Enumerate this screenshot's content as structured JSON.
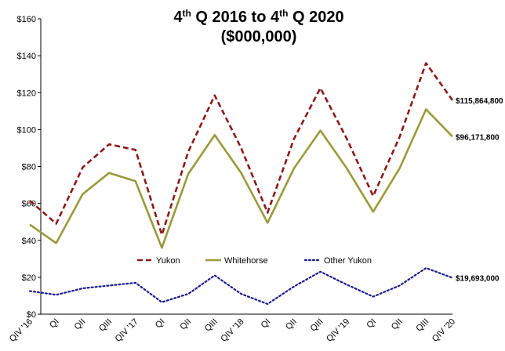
{
  "chart_data": {
    "type": "line",
    "title_parts": [
      {
        "text": "4"
      },
      {
        "text": "th",
        "sup": true
      },
      {
        "text": " Q 2016 to 4"
      },
      {
        "text": "th",
        "sup": true
      },
      {
        "text": " Q 2020"
      }
    ],
    "title_line2": "($000,000)",
    "categories": [
      "QIV '16",
      "QI",
      "QII",
      "QIII",
      "QIV '17",
      "QI",
      "QII",
      "QIII",
      "QIV '18",
      "QI",
      "QII",
      "QIII",
      "QIV '19",
      "QI",
      "QII",
      "QIII",
      "QIV '20"
    ],
    "ylim": [
      0,
      160
    ],
    "yticks": [
      0,
      20,
      40,
      60,
      80,
      100,
      120,
      140,
      160
    ],
    "ytick_labels": [
      "$0",
      "$20",
      "$40",
      "$60",
      "$80",
      "$100",
      "$120",
      "$140",
      "$160"
    ],
    "grid": false,
    "legend_position": "bottom-center",
    "series": [
      {
        "name": "Yukon",
        "color": "#8b1a1a",
        "style": "dashed",
        "values": [
          61.5,
          49,
          79.5,
          92,
          89,
          43,
          88,
          118.5,
          90,
          55,
          95,
          122.5,
          95,
          64,
          96,
          136,
          115.9
        ],
        "end_label": "$115,864,800"
      },
      {
        "name": "Whitehorse",
        "color": "#9a9a3a",
        "style": "solid",
        "values": [
          48.5,
          38.5,
          65,
          76.5,
          72,
          36,
          76,
          97,
          76.5,
          49.5,
          79,
          99.5,
          79,
          55.5,
          79,
          111,
          96.2
        ],
        "end_label": "$96,171,800"
      },
      {
        "name": "Other Yukon",
        "color": "#1a1a8b",
        "style": "dotted",
        "values": [
          12.5,
          10.5,
          14,
          15.5,
          17,
          6.5,
          11,
          21,
          11,
          5.5,
          15,
          23,
          16,
          9.5,
          15.5,
          25,
          19.7
        ],
        "end_label": "$19,693,000"
      }
    ]
  }
}
